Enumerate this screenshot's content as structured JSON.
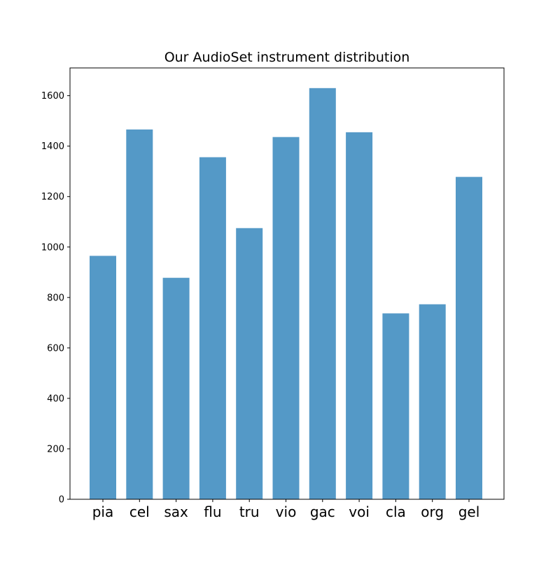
{
  "chart_data": {
    "type": "bar",
    "title": "Our AudioSet instrument distribution",
    "xlabel": "",
    "ylabel": "",
    "categories": [
      "pia",
      "cel",
      "sax",
      "flu",
      "tru",
      "vio",
      "gac",
      "voi",
      "cla",
      "org",
      "gel"
    ],
    "values": [
      965,
      1466,
      878,
      1356,
      1075,
      1436,
      1630,
      1455,
      737,
      773,
      1278
    ],
    "ylim": [
      0,
      1710
    ],
    "yticks": [
      0,
      200,
      400,
      600,
      800,
      1000,
      1200,
      1400,
      1600
    ],
    "ytick_labels": [
      "0",
      "200",
      "400",
      "600",
      "800",
      "1000",
      "1200",
      "1400",
      "1600"
    ],
    "bar_color": "#5499c7",
    "grid": false,
    "legend": "none"
  }
}
